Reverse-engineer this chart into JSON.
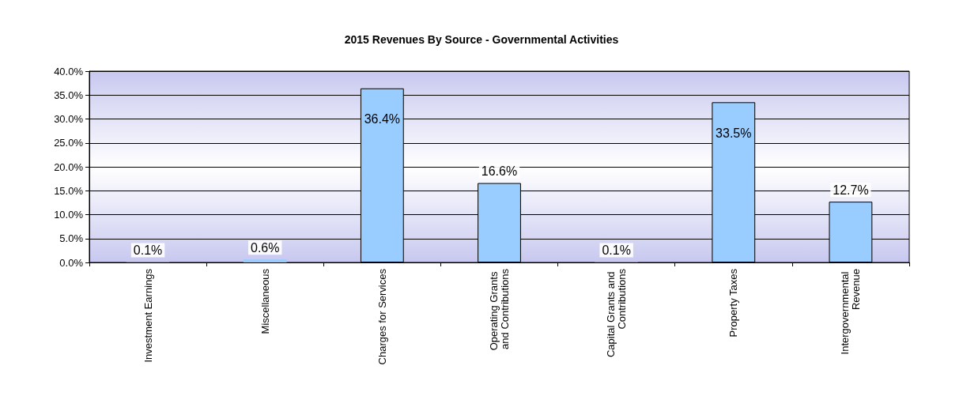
{
  "chart_data": {
    "type": "bar",
    "title": "2015 Revenues By Source - Governmental Activities",
    "categories": [
      "Investment Earnings",
      "Miscellaneous",
      "Charges for Services",
      "Operating Grants and Contributions",
      "Capital Grants and Contributions",
      "Property Taxes",
      "Intergovernmental Revenue"
    ],
    "values": [
      0.1,
      0.6,
      36.4,
      16.6,
      0.1,
      33.5,
      12.7
    ],
    "value_labels": [
      "0.1%",
      "0.6%",
      "36.4%",
      "16.6%",
      "0.1%",
      "33.5%",
      "12.7%"
    ],
    "color": "#99ccff",
    "ylim": [
      0,
      40
    ],
    "yticks": [
      {
        "value": 0,
        "label": "0.0%"
      },
      {
        "value": 5,
        "label": "5.0%"
      },
      {
        "value": 10,
        "label": "10.0%"
      },
      {
        "value": 15,
        "label": "15.0%"
      },
      {
        "value": 20,
        "label": "20.0%"
      },
      {
        "value": 25,
        "label": "25.0%"
      },
      {
        "value": 30,
        "label": "30.0%"
      },
      {
        "value": 35,
        "label": "35.0%"
      },
      {
        "value": 40,
        "label": "40.0%"
      }
    ],
    "grid": "y"
  }
}
